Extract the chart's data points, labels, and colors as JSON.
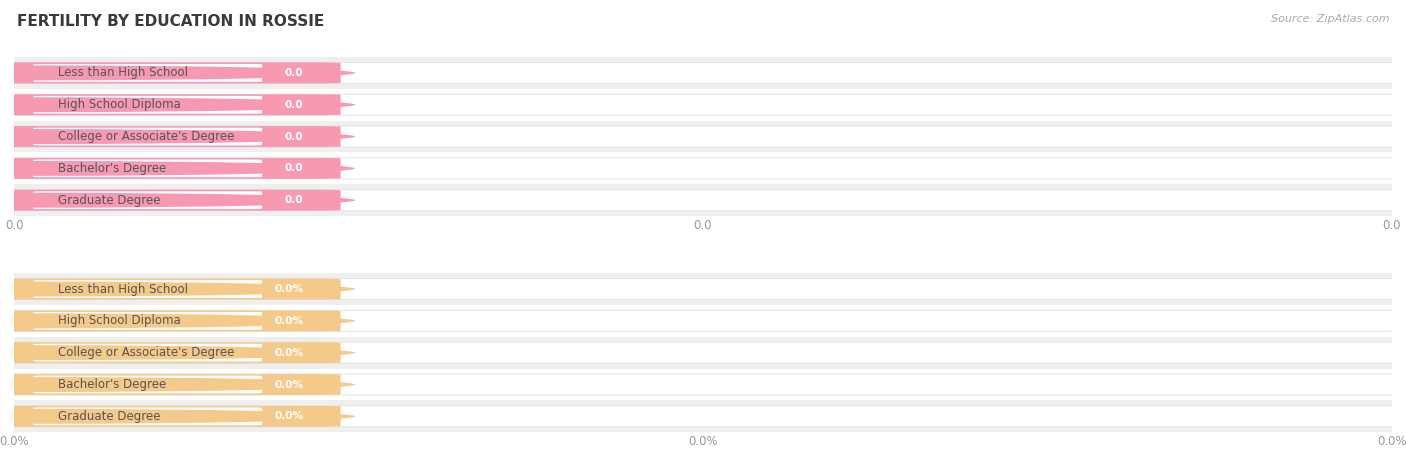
{
  "title": "FERTILITY BY EDUCATION IN ROSSIE",
  "source": "Source: ZipAtlas.com",
  "sections": [
    {
      "categories": [
        "Less than High School",
        "High School Diploma",
        "College or Associate's Degree",
        "Bachelor's Degree",
        "Graduate Degree"
      ],
      "values": [
        0.0,
        0.0,
        0.0,
        0.0,
        0.0
      ],
      "bar_color": "#f799b0",
      "pill_bg": "#ffffff",
      "dot_color": "#f799b0",
      "label_color": "#555555",
      "value_color": "#ffffff",
      "value_suffix": "",
      "tick_labels": [
        "0.0",
        "0.0",
        "0.0"
      ]
    },
    {
      "categories": [
        "Less than High School",
        "High School Diploma",
        "College or Associate's Degree",
        "Bachelor's Degree",
        "Graduate Degree"
      ],
      "values": [
        0.0,
        0.0,
        0.0,
        0.0,
        0.0
      ],
      "bar_color": "#f5c98a",
      "pill_bg": "#ffffff",
      "dot_color": "#f5c98a",
      "label_color": "#555555",
      "value_color": "#ffffff",
      "value_suffix": "%",
      "tick_labels": [
        "0.0%",
        "0.0%",
        "0.0%"
      ]
    }
  ],
  "bg_color": "#ffffff",
  "row_bg_alt": "#efefef",
  "grid_color": "#d8d8d8",
  "title_color": "#3a3a3a",
  "source_color": "#aaaaaa",
  "title_fontsize": 11,
  "label_fontsize": 8.5,
  "value_fontsize": 7.5,
  "tick_fontsize": 8.5,
  "source_fontsize": 8
}
